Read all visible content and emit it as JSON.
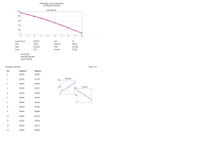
{
  "header": {
    "title": "Mortgage Loan Calculator",
    "subtitle": "Amortization Schedule"
  },
  "charts": [
    {
      "type": "line",
      "title": "Loan Balance",
      "x": [
        1,
        2,
        3,
        4,
        5,
        6,
        7,
        8,
        9,
        10
      ],
      "values": [
        95,
        88,
        80,
        71,
        62,
        52,
        41,
        30,
        18,
        6
      ],
      "color": "#e0306a",
      "marker_color": "#3355cc",
      "ylim": [
        0,
        100
      ],
      "yticks": [
        0,
        20,
        40,
        60,
        80,
        100
      ]
    },
    {
      "type": "line",
      "title": "Principal",
      "x": [
        1,
        2,
        3,
        4,
        5,
        6
      ],
      "values": [
        20,
        30,
        42,
        55,
        70,
        86
      ],
      "color": "#3355cc",
      "marker_color": "#3355cc",
      "ylim": [
        0,
        100
      ],
      "yticks": [
        0,
        50,
        100
      ]
    },
    {
      "type": "line",
      "title": "Interest",
      "x": [
        1,
        2,
        3,
        4,
        5,
        6
      ],
      "values": [
        85,
        72,
        60,
        46,
        33,
        18
      ],
      "color": "#3355cc",
      "marker_color": "#3355cc",
      "ylim": [
        0,
        100
      ],
      "yticks": [
        0,
        50,
        100
      ]
    }
  ],
  "summary": [
    [
      "Loan Amount",
      "100,000",
      "Term",
      "30"
    ],
    [
      "Rate",
      "5.00%",
      "Payment",
      "536.82"
    ],
    [
      "Start",
      "1/1/2020",
      "Total",
      "193,256"
    ],
    [
      "Extra",
      "0.00",
      "Interest",
      "93,256"
    ]
  ],
  "notes": [
    "Pmt 536.82",
    "Total paid 193,256",
    "Payoff 12/2049"
  ],
  "footer_left": "Mortgage Calculator",
  "footer_right": "Page 1 of 1",
  "table": {
    "columns": [
      "No.",
      "Payment",
      "Balance"
    ],
    "rows": [
      [
        "1",
        "536.82",
        "99,880"
      ],
      [
        "2",
        "536.82",
        "99,760"
      ],
      [
        "3",
        "536.82",
        "99,639"
      ],
      [
        "4",
        "536.82",
        "99,517"
      ],
      [
        "5",
        "536.82",
        "99,395"
      ],
      [
        "6",
        "536.82",
        "99,272"
      ],
      [
        "7",
        "536.82",
        "99,148"
      ],
      [
        "8",
        "536.82",
        "99,024"
      ],
      [
        "9",
        "536.82",
        "98,899"
      ],
      [
        "10",
        "536.82",
        "98,773"
      ],
      [
        "11",
        "536.82",
        "98,646"
      ],
      [
        "12",
        "536.82",
        "98,519"
      ],
      [
        "13",
        "536.82",
        "98,391"
      ]
    ]
  }
}
